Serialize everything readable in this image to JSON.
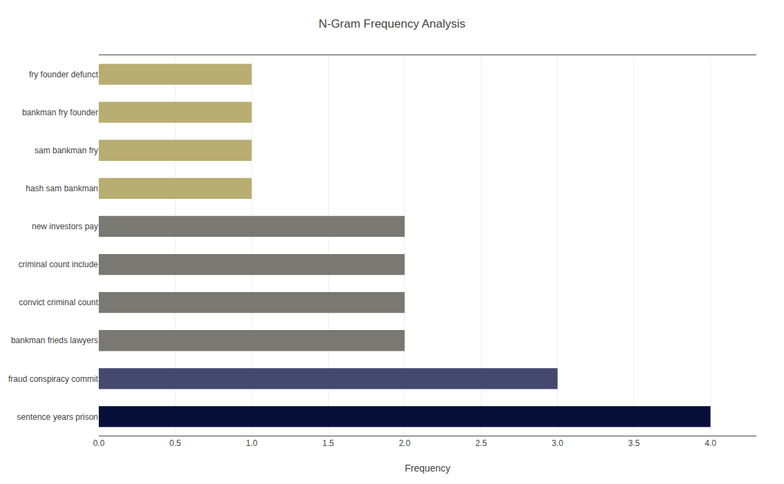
{
  "chart_data": {
    "type": "bar",
    "orientation": "horizontal",
    "title": "N-Gram Frequency Analysis",
    "xlabel": "Frequency",
    "categories": [
      "fry founder defunct",
      "bankman fry founder",
      "sam bankman fry",
      "hash sam bankman",
      "new investors pay",
      "criminal count include",
      "convict criminal count",
      "bankman frieds lawyers",
      "fraud conspiracy commit",
      "sentence years prison"
    ],
    "values": [
      1,
      1,
      1,
      1,
      2,
      2,
      2,
      2,
      3,
      4
    ],
    "colors": [
      "#b8ad72",
      "#b8ad72",
      "#b8ad72",
      "#b8ad72",
      "#797872",
      "#797872",
      "#797872",
      "#797872",
      "#454970",
      "#08103a"
    ],
    "xlim": [
      0,
      4.3
    ],
    "xticks": [
      {
        "value": 0,
        "label": "0.0"
      },
      0.5,
      {
        "value": 1,
        "label": "1.0"
      },
      1.5,
      {
        "value": 2,
        "label": "2.0"
      },
      2.5,
      {
        "value": 3,
        "label": "3.0"
      },
      3.5,
      {
        "value": 4,
        "label": "4.0"
      }
    ],
    "grid": true
  }
}
